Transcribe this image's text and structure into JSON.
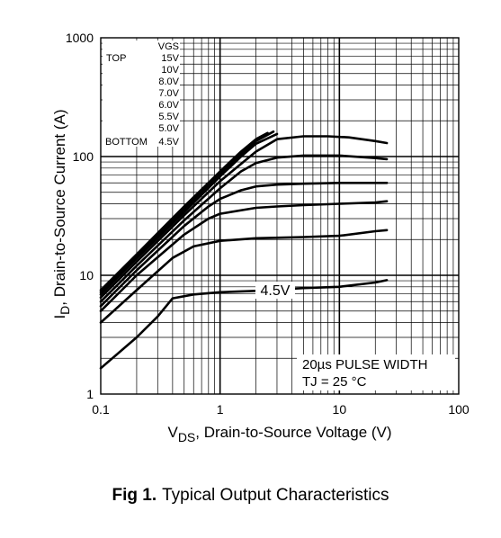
{
  "chart_data": {
    "type": "line",
    "xlabel": "V",
    "xlabel_sub": "DS",
    "xlabel_rest": ", Drain-to-Source Voltage (V)",
    "ylabel": "I",
    "ylabel_sub": "D",
    "ylabel_rest": ",  Drain-to-Source Current (A)",
    "x_scale": "log",
    "y_scale": "log",
    "xlim": [
      0.1,
      100
    ],
    "ylim": [
      1,
      1000
    ],
    "x_ticks": [
      {
        "value": 0.1,
        "label": "0.1"
      },
      {
        "value": 1,
        "label": "1"
      },
      {
        "value": 10,
        "label": "10"
      },
      {
        "value": 100,
        "label": "100"
      }
    ],
    "y_ticks": [
      {
        "value": 1,
        "label": "1"
      },
      {
        "value": 10,
        "label": "10"
      },
      {
        "value": 100,
        "label": "100"
      },
      {
        "value": 1000,
        "label": "1000"
      }
    ],
    "grid": true,
    "legend": {
      "title": "VGS",
      "top_label": "TOP",
      "bottom_label": "BOTTOM",
      "entries": [
        "15V",
        "10V",
        "8.0V",
        "7.0V",
        "6.0V",
        "5.5V",
        "5.0V",
        "4.5V"
      ],
      "placement": "top-left"
    },
    "series": [
      {
        "vgs": "15V",
        "points": [
          [
            0.1,
            7.5
          ],
          [
            0.2,
            15
          ],
          [
            0.5,
            38
          ],
          [
            1,
            75
          ],
          [
            1.5,
            110
          ],
          [
            2,
            140
          ],
          [
            2.5,
            158
          ]
        ]
      },
      {
        "vgs": "10V",
        "points": [
          [
            0.1,
            7.2
          ],
          [
            0.2,
            14.4
          ],
          [
            0.5,
            36
          ],
          [
            1,
            72
          ],
          [
            1.5,
            105
          ],
          [
            2,
            135
          ],
          [
            2.8,
            162
          ]
        ]
      },
      {
        "vgs": "8.0V",
        "points": [
          [
            0.1,
            6.9
          ],
          [
            0.2,
            13.8
          ],
          [
            0.5,
            34
          ],
          [
            1,
            68
          ],
          [
            1.5,
            100
          ],
          [
            2,
            128
          ],
          [
            3,
            155
          ]
        ]
      },
      {
        "vgs": "7.0V",
        "points": [
          [
            0.1,
            6.5
          ],
          [
            0.2,
            13
          ],
          [
            0.5,
            32
          ],
          [
            1,
            62
          ],
          [
            2,
            110
          ],
          [
            3,
            140
          ],
          [
            5,
            148
          ],
          [
            8,
            148
          ],
          [
            12,
            145
          ],
          [
            20,
            135
          ],
          [
            25,
            130
          ]
        ]
      },
      {
        "vgs": "6.0V",
        "points": [
          [
            0.1,
            6
          ],
          [
            0.2,
            12
          ],
          [
            0.5,
            29
          ],
          [
            1,
            54
          ],
          [
            1.5,
            75
          ],
          [
            2,
            88
          ],
          [
            3,
            98
          ],
          [
            5,
            102
          ],
          [
            10,
            102
          ],
          [
            20,
            97
          ],
          [
            25,
            95
          ]
        ]
      },
      {
        "vgs": "5.5V",
        "points": [
          [
            0.1,
            5.5
          ],
          [
            0.2,
            11
          ],
          [
            0.5,
            26
          ],
          [
            0.8,
            38
          ],
          [
            1,
            44
          ],
          [
            1.5,
            52
          ],
          [
            2,
            56
          ],
          [
            3,
            58
          ],
          [
            5,
            59
          ],
          [
            10,
            60
          ],
          [
            25,
            60
          ]
        ]
      },
      {
        "vgs": "5.0V",
        "points": [
          [
            0.1,
            5
          ],
          [
            0.2,
            10
          ],
          [
            0.5,
            22
          ],
          [
            0.8,
            30
          ],
          [
            1,
            33
          ],
          [
            2,
            37
          ],
          [
            3,
            38
          ],
          [
            5,
            39
          ],
          [
            10,
            40
          ],
          [
            20,
            41
          ],
          [
            25,
            42
          ]
        ]
      },
      {
        "vgs": "4.5V",
        "points": [
          [
            0.1,
            4
          ],
          [
            0.2,
            7.5
          ],
          [
            0.4,
            14
          ],
          [
            0.6,
            17.5
          ],
          [
            1,
            19.5
          ],
          [
            2,
            20.5
          ],
          [
            5,
            21
          ],
          [
            10,
            21.5
          ],
          [
            20,
            23.5
          ],
          [
            25,
            24
          ]
        ]
      },
      {
        "vgs": "4.5V",
        "points": [
          [
            0.1,
            1.65
          ],
          [
            0.2,
            3
          ],
          [
            0.3,
            4.5
          ],
          [
            0.4,
            6.4
          ],
          [
            0.6,
            6.9
          ],
          [
            1,
            7.2
          ],
          [
            2,
            7.4
          ],
          [
            5,
            7.8
          ],
          [
            10,
            8
          ],
          [
            20,
            8.7
          ],
          [
            25,
            9.1
          ]
        ]
      }
    ],
    "annotations": [
      {
        "text": "4.5V",
        "at": [
          3.8,
          7.6
        ]
      }
    ],
    "notes": [
      "20µs PULSE WIDTH",
      "TJ = 25 °C"
    ]
  },
  "caption": {
    "fig": "Fig 1.",
    "text": "Typical Output Characteristics"
  }
}
